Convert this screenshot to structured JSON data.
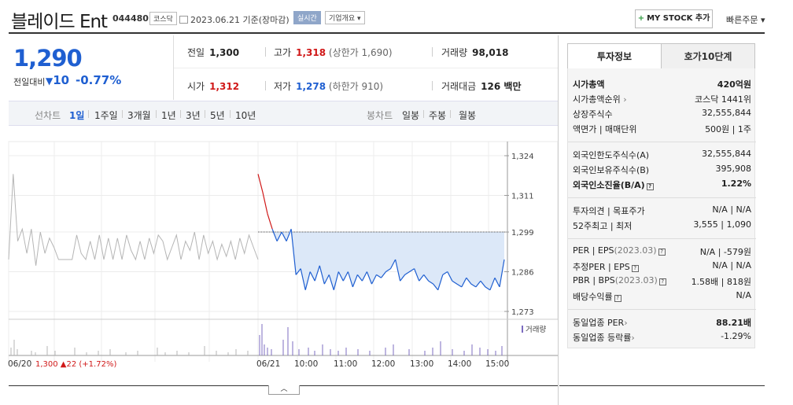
{
  "header": {
    "title": "블레이드 Ent",
    "code": "044480",
    "market": "코스닥",
    "date_text": "2023.06.21 기준(장마감)",
    "live_label": "실시간",
    "overview_label": "기업개요",
    "mystock_label": "MY STOCK 추가",
    "quick_order_label": "빠른주문"
  },
  "price": {
    "current": "1,290",
    "change_label": "전일대비",
    "change": "10",
    "change_pct": "-0.77%"
  },
  "summary": {
    "prev_label": "전일",
    "prev": "1,300",
    "high_label": "고가",
    "high": "1,318",
    "upper_limit": "(상한가 1,690)",
    "volume_label": "거래량",
    "volume": "98,018",
    "open_label": "시가",
    "open": "1,312",
    "low_label": "저가",
    "low": "1,278",
    "lower_limit": "(하한가 910)",
    "amount_label": "거래대금",
    "amount": "126 백만"
  },
  "period_bar": {
    "line_label": "선차트",
    "periods": [
      "1일",
      "1주일",
      "3개월",
      "1년",
      "3년",
      "5년",
      "10년"
    ],
    "selected": "1일",
    "candle_label": "봉차트",
    "candles": [
      "일봉",
      "주봉",
      "월봉"
    ]
  },
  "chart_data": {
    "type": "line",
    "y_ticks": [
      "1,324",
      "1,311",
      "1,299",
      "1,286",
      "1,273"
    ],
    "ylim": [
      1273,
      1324
    ],
    "prev_close": 1299,
    "volume_label": "거래량",
    "x_ticks": [
      "06/20",
      "06/21",
      "10:00",
      "11:00",
      "12:00",
      "13:00",
      "14:00",
      "15:00"
    ],
    "prev_day_summary": {
      "close": "1,300",
      "change": "▲22",
      "pct": "(+1.72%)"
    },
    "series": [
      {
        "name": "06/20",
        "values": [
          1290,
          1318,
          1296,
          1300,
          1292,
          1300,
          1288,
          1299,
          1292,
          1297,
          1294,
          1290,
          1290,
          1290,
          1290,
          1298,
          1292,
          1290,
          1296,
          1290,
          1298,
          1290,
          1297,
          1290,
          1297,
          1290,
          1298,
          1293,
          1290,
          1296,
          1290,
          1297,
          1292,
          1298,
          1296,
          1290,
          1294,
          1298,
          1290,
          1296,
          1293,
          1299,
          1290,
          1298,
          1292,
          1296,
          1290,
          1295,
          1291,
          1296,
          1290,
          1297,
          1292,
          1298,
          1294,
          1290
        ]
      },
      {
        "name": "06/21",
        "values": [
          1318,
          1312,
          1305,
          1300,
          1296,
          1299,
          1296,
          1300,
          1285,
          1287,
          1280,
          1286,
          1283,
          1288,
          1282,
          1285,
          1280,
          1286,
          1283,
          1286,
          1281,
          1285,
          1283,
          1286,
          1282,
          1285,
          1284,
          1286,
          1287,
          1290,
          1283,
          1285,
          1286,
          1287,
          1283,
          1285,
          1283,
          1282,
          1280,
          1285,
          1286,
          1283,
          1282,
          1281,
          1284,
          1282,
          1281,
          1283,
          1281,
          1280,
          1284,
          1281,
          1290
        ]
      }
    ]
  },
  "invest_panel": {
    "tab_invest": "투자정보",
    "tab_orderbook": "호가10단계",
    "rows1": [
      {
        "k": "시가총액",
        "v": "420억원"
      },
      {
        "k": "시가총액순위",
        "v": "코스닥 1441위"
      },
      {
        "k": "상장주식수",
        "v": "32,555,844"
      },
      {
        "k": "액면가 | 매매단위",
        "v": "500원 | 1주"
      }
    ],
    "rows2": [
      {
        "k": "외국인한도주식수(A)",
        "v": "32,555,844"
      },
      {
        "k": "외국인보유주식수(B)",
        "v": "395,908"
      },
      {
        "k": "외국인소진율(B/A)",
        "v": "1.22%"
      }
    ],
    "rows3": [
      {
        "k": "투자의견 | 목표주가",
        "v": "N/A | N/A"
      },
      {
        "k": "52주최고 | 최저",
        "v": "3,555 | 1,090"
      }
    ],
    "rows4": [
      {
        "k": "PER | EPS",
        "k2": "(2023.03)",
        "v": "N/A | -579원"
      },
      {
        "k": "추정PER | EPS",
        "v": "N/A | N/A"
      },
      {
        "k": "PBR | BPS",
        "k2": "(2023.03)",
        "v": "1.58배 | 818원"
      },
      {
        "k": "배당수익률",
        "v": "N/A"
      }
    ],
    "rows5": [
      {
        "k": "동일업종 PER",
        "v": "88.21배"
      },
      {
        "k": "동일업종 등락률",
        "v": "-1.29%"
      }
    ]
  },
  "colors": {
    "up": "#d01818",
    "down": "#1f5fd1",
    "fill": "#dce8f8"
  }
}
